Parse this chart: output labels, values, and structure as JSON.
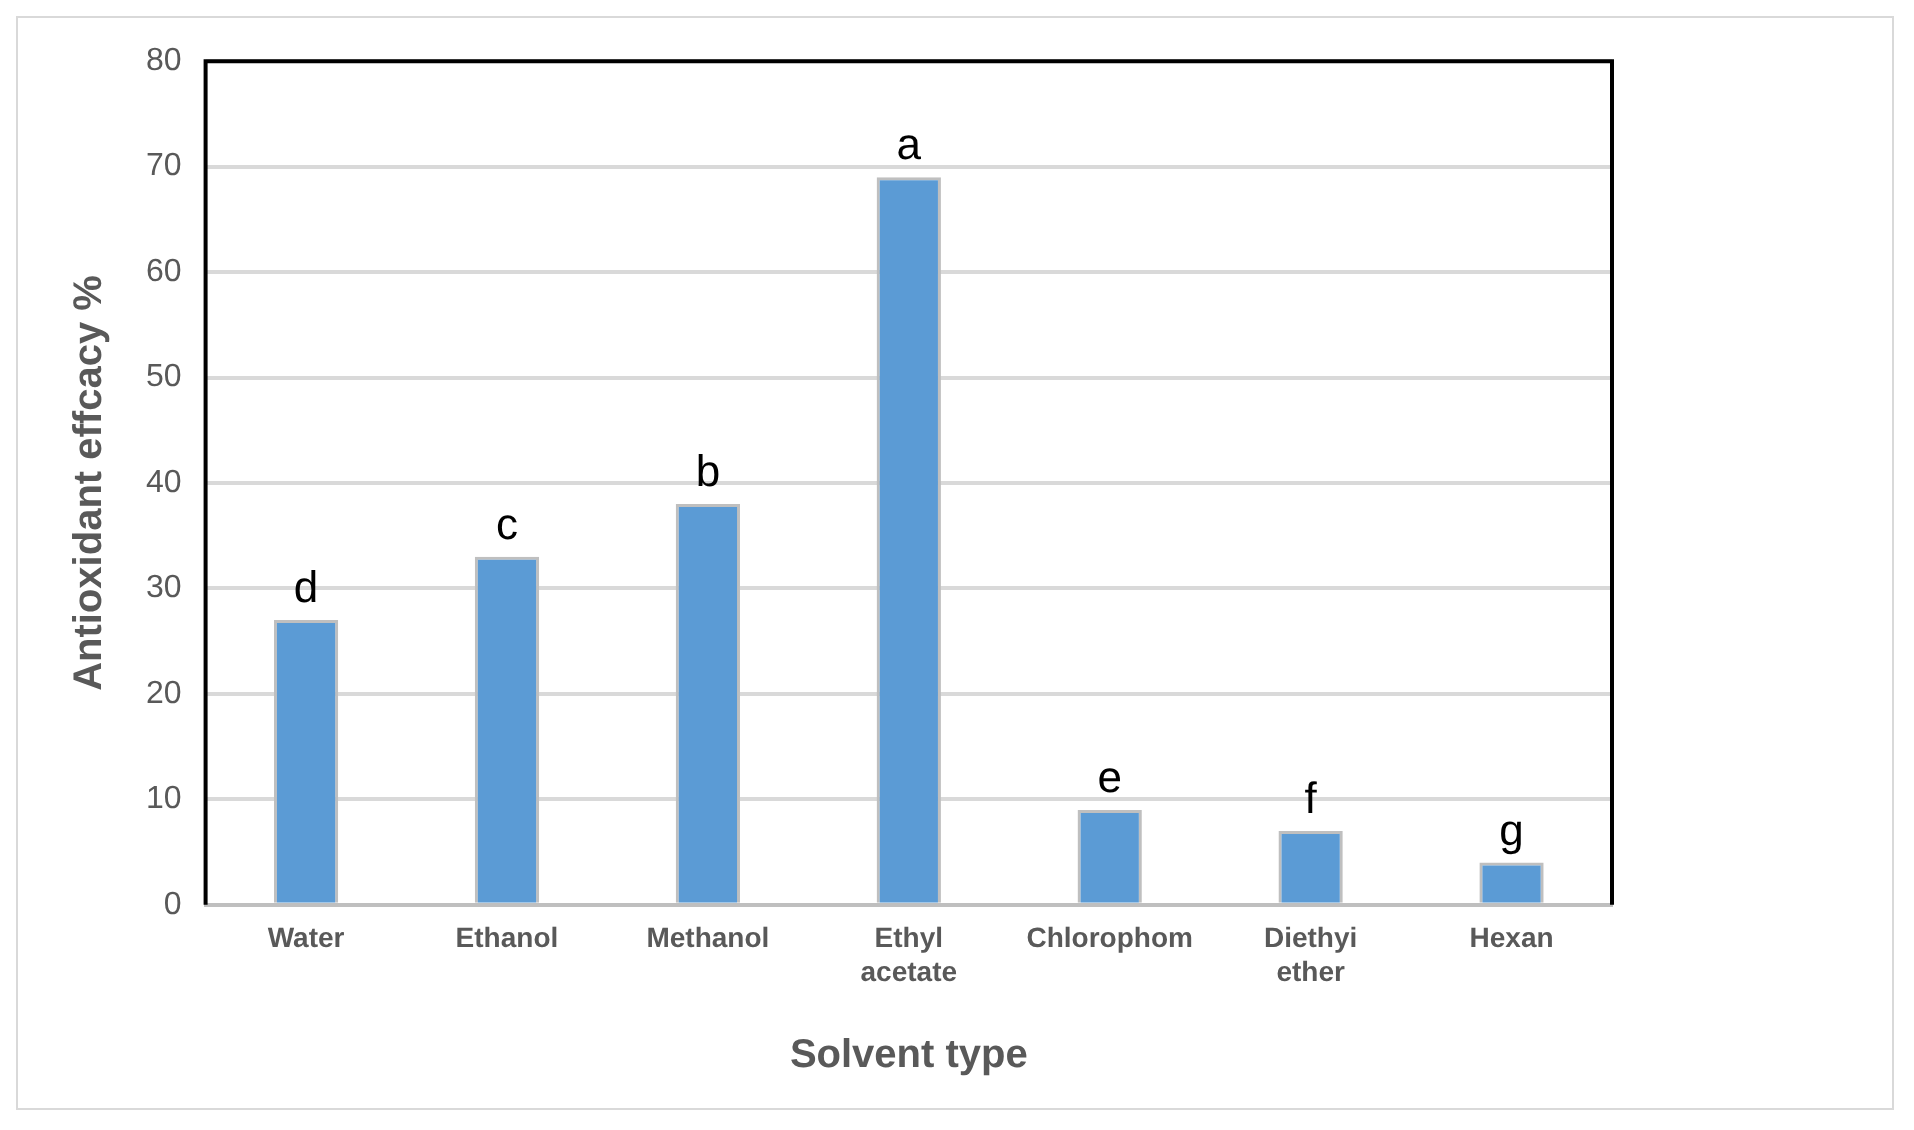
{
  "chart_data": {
    "type": "bar",
    "xlabel": "Solvent type",
    "ylabel": "Antioxidant effcacy %",
    "categories": [
      "Water",
      "Ethanol",
      "Methanol",
      "Ethyl acetate",
      "Chlorophom",
      "Diethyi ether",
      "Hexan"
    ],
    "values": [
      27,
      33,
      38,
      69,
      9,
      7,
      4
    ],
    "color": "#5b9bd5",
    "ylim": [
      0,
      80
    ],
    "yticks": [
      0,
      10,
      20,
      30,
      40,
      50,
      60,
      70,
      80
    ],
    "grid": "y",
    "annotations": [
      {
        "text": "d",
        "x": "Water",
        "y": 27
      },
      {
        "text": "c",
        "x": "Ethanol",
        "y": 33
      },
      {
        "text": "b",
        "x": "Methanol",
        "y": 38
      },
      {
        "text": "a",
        "x": "Ethyl acetate",
        "y": 69
      },
      {
        "text": "e",
        "x": "Chlorophom",
        "y": 9
      },
      {
        "text": "f",
        "x": "Diethyi ether",
        "y": 7
      },
      {
        "text": "g",
        "x": "Hexan",
        "y": 4
      }
    ]
  }
}
